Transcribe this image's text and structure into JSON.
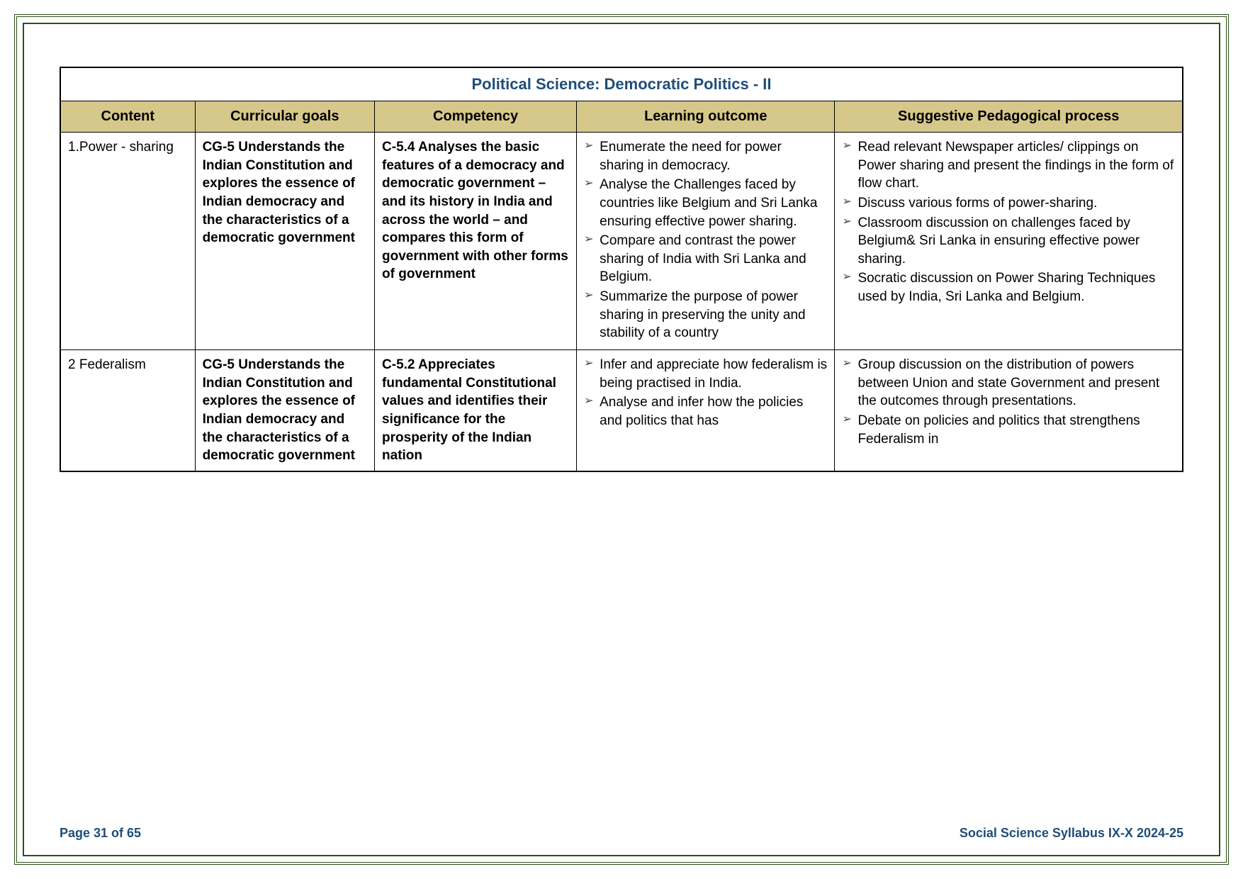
{
  "title": "Political Science: Democratic Politics - II",
  "headers": {
    "content": "Content",
    "goals": "Curricular goals",
    "competency": "Competency",
    "outcome": "Learning outcome",
    "pedagogy": "Suggestive Pedagogical process"
  },
  "rows": [
    {
      "content": "1.Power - sharing",
      "goals": "CG-5 Understands the Indian Constitution and explores the essence of Indian democracy and the characteristics of a democratic government",
      "competency": "C-5.4 Analyses the basic features of a democracy and democratic government – and its history in India and across the world – and compares this form of government with other forms of government",
      "outcomes": [
        "Enumerate the need for power sharing in democracy.",
        "Analyse the Challenges faced by countries like Belgium and Sri Lanka ensuring effective power sharing.",
        "Compare and contrast the power sharing of India with Sri Lanka and Belgium.",
        "Summarize the purpose of power sharing in preserving the unity and stability of a country"
      ],
      "pedagogy": [
        "Read relevant Newspaper articles/ clippings on Power sharing and present the findings in the form of flow chart.",
        "Discuss various forms of power-sharing.",
        "Classroom discussion on challenges faced by Belgium& Sri Lanka in ensuring effective power sharing.",
        "Socratic discussion on Power Sharing Techniques used by India, Sri Lanka and Belgium."
      ]
    },
    {
      "content": "2 Federalism",
      "goals": "CG-5 Understands the Indian Constitution and explores the essence of Indian democracy and the characteristics of a democratic government",
      "competency": "C-5.2 Appreciates fundamental Constitutional values and identifies their significance for the prosperity of the Indian nation",
      "outcomes": [
        "Infer and appreciate how federalism is being practised in India.",
        "Analyse and infer how the policies and politics that has"
      ],
      "pedagogy": [
        "Group discussion on the distribution of powers between Union and state Government and present the outcomes through presentations.",
        "Debate on policies and politics that strengthens Federalism in"
      ]
    }
  ],
  "footer": {
    "page": "Page 31 of 65",
    "doc": "Social Science Syllabus IX-X 2024-25"
  },
  "colors": {
    "border": "#2d5016",
    "header_bg": "#d6c88a",
    "title_color": "#1f4e79",
    "footer_color": "#1f4e79"
  }
}
